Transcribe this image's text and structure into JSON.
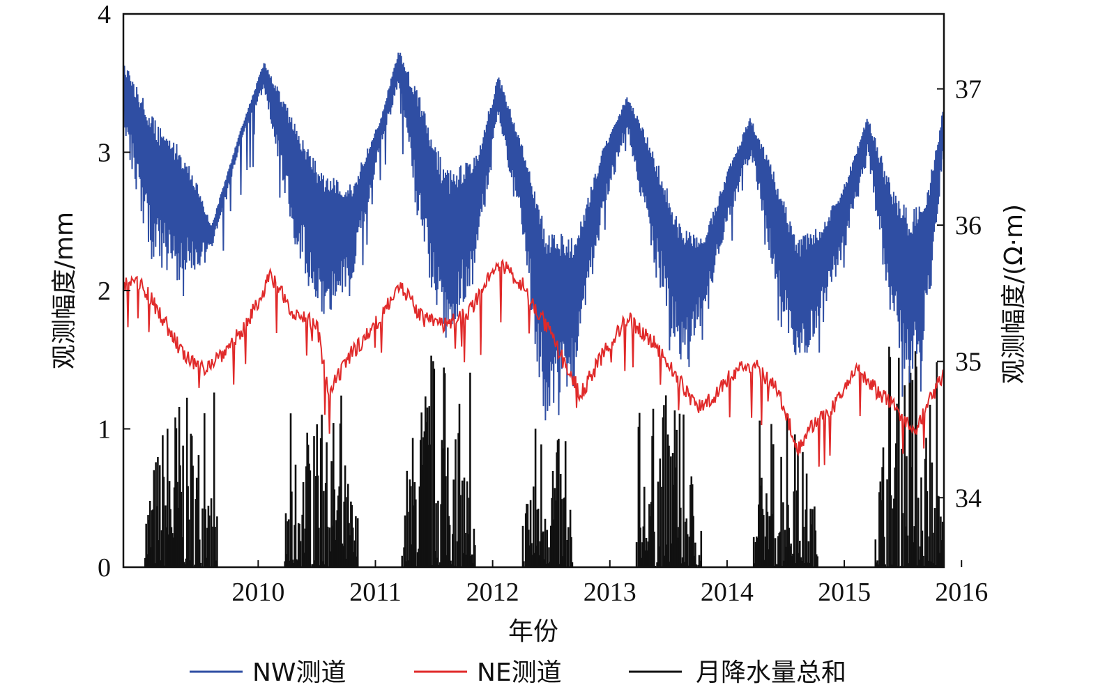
{
  "chart_data": {
    "type": "line",
    "title": "",
    "xlabel": "年份",
    "ylabel": "观测幅度/mm",
    "y2label": "观测幅度/(Ω·m)",
    "x_ticks": [
      "2010",
      "2011",
      "2012",
      "2013",
      "2014",
      "2015",
      "2016"
    ],
    "xlim": [
      2009.35,
      2016.35
    ],
    "ylim": [
      0,
      4
    ],
    "y_ticks": [
      "0",
      "1",
      "2",
      "3",
      "4"
    ],
    "y2lim": [
      33.49,
      37.55
    ],
    "y2_ticks": [
      "34",
      "35",
      "36",
      "37"
    ],
    "legend_position": "bottom",
    "series": [
      {
        "name": "NW测道",
        "axis": "right",
        "color": "#2f4ea3",
        "upper": [
          [
            2009.35,
            37.2
          ],
          [
            2009.6,
            36.8
          ],
          [
            2009.9,
            36.5
          ],
          [
            2010.1,
            36.0
          ],
          [
            2010.35,
            36.7
          ],
          [
            2010.55,
            37.2
          ],
          [
            2010.8,
            36.8
          ],
          [
            2011.05,
            36.4
          ],
          [
            2011.3,
            36.3
          ],
          [
            2011.55,
            36.8
          ],
          [
            2011.7,
            37.3
          ],
          [
            2011.9,
            36.9
          ],
          [
            2012.1,
            36.4
          ],
          [
            2012.35,
            36.5
          ],
          [
            2012.55,
            37.1
          ],
          [
            2012.75,
            36.6
          ],
          [
            2012.95,
            36.0
          ],
          [
            2013.2,
            35.9
          ],
          [
            2013.45,
            36.6
          ],
          [
            2013.65,
            36.95
          ],
          [
            2013.85,
            36.6
          ],
          [
            2014.1,
            36.0
          ],
          [
            2014.3,
            35.9
          ],
          [
            2014.5,
            36.4
          ],
          [
            2014.7,
            36.8
          ],
          [
            2014.9,
            36.4
          ],
          [
            2015.1,
            35.9
          ],
          [
            2015.3,
            36.0
          ],
          [
            2015.5,
            36.3
          ],
          [
            2015.7,
            36.8
          ],
          [
            2015.9,
            36.3
          ],
          [
            2016.05,
            36.1
          ],
          [
            2016.2,
            36.2
          ],
          [
            2016.35,
            36.9
          ]
        ],
        "lower": [
          [
            2009.35,
            36.7
          ],
          [
            2009.6,
            35.7
          ],
          [
            2009.9,
            35.6
          ],
          [
            2010.1,
            35.8
          ],
          [
            2010.35,
            36.6
          ],
          [
            2010.55,
            37.0
          ],
          [
            2010.8,
            35.9
          ],
          [
            2011.05,
            35.2
          ],
          [
            2011.3,
            35.6
          ],
          [
            2011.55,
            36.6
          ],
          [
            2011.7,
            37.0
          ],
          [
            2011.9,
            35.8
          ],
          [
            2012.1,
            35.1
          ],
          [
            2012.35,
            35.6
          ],
          [
            2012.55,
            36.8
          ],
          [
            2012.75,
            35.9
          ],
          [
            2012.95,
            34.5
          ],
          [
            2013.2,
            34.9
          ],
          [
            2013.45,
            36.1
          ],
          [
            2013.65,
            36.7
          ],
          [
            2013.85,
            35.8
          ],
          [
            2014.1,
            35.0
          ],
          [
            2014.3,
            35.3
          ],
          [
            2014.5,
            36.0
          ],
          [
            2014.7,
            36.5
          ],
          [
            2014.9,
            35.6
          ],
          [
            2015.1,
            34.9
          ],
          [
            2015.3,
            35.3
          ],
          [
            2015.5,
            35.8
          ],
          [
            2015.7,
            36.5
          ],
          [
            2015.9,
            35.3
          ],
          [
            2016.05,
            34.8
          ],
          [
            2016.2,
            35.2
          ],
          [
            2016.35,
            36.5
          ]
        ]
      },
      {
        "name": "NE测道",
        "axis": "left",
        "color": "#e02a2a",
        "values": [
          [
            2009.35,
            2.05
          ],
          [
            2009.5,
            2.05
          ],
          [
            2009.65,
            1.85
          ],
          [
            2009.85,
            1.55
          ],
          [
            2010.0,
            1.42
          ],
          [
            2010.2,
            1.55
          ],
          [
            2010.4,
            1.75
          ],
          [
            2010.6,
            2.1
          ],
          [
            2010.8,
            1.85
          ],
          [
            2011.0,
            1.75
          ],
          [
            2011.1,
            1.25
          ],
          [
            2011.3,
            1.55
          ],
          [
            2011.5,
            1.75
          ],
          [
            2011.7,
            2.05
          ],
          [
            2011.9,
            1.8
          ],
          [
            2012.1,
            1.75
          ],
          [
            2012.3,
            1.85
          ],
          [
            2012.55,
            2.2
          ],
          [
            2012.75,
            2.05
          ],
          [
            2012.95,
            1.75
          ],
          [
            2013.1,
            1.5
          ],
          [
            2013.25,
            1.25
          ],
          [
            2013.45,
            1.55
          ],
          [
            2013.65,
            1.8
          ],
          [
            2013.85,
            1.65
          ],
          [
            2014.05,
            1.4
          ],
          [
            2014.25,
            1.15
          ],
          [
            2014.4,
            1.25
          ],
          [
            2014.6,
            1.45
          ],
          [
            2014.75,
            1.45
          ],
          [
            2014.95,
            1.25
          ],
          [
            2015.1,
            0.85
          ],
          [
            2015.25,
            1.05
          ],
          [
            2015.45,
            1.2
          ],
          [
            2015.6,
            1.45
          ],
          [
            2015.8,
            1.25
          ],
          [
            2015.95,
            1.15
          ],
          [
            2016.1,
            0.95
          ],
          [
            2016.2,
            1.15
          ],
          [
            2016.35,
            1.4
          ]
        ]
      },
      {
        "name": "月降水量总和",
        "axis": "left",
        "color": "#111111",
        "seasons": [
          {
            "start": 2009.52,
            "end": 2010.15,
            "peak": 1.28
          },
          {
            "start": 2010.72,
            "end": 2011.35,
            "peak": 1.25
          },
          {
            "start": 2011.72,
            "end": 2012.35,
            "peak": 1.55
          },
          {
            "start": 2012.75,
            "end": 2013.18,
            "peak": 1.15
          },
          {
            "start": 2013.72,
            "end": 2014.28,
            "peak": 1.28
          },
          {
            "start": 2014.72,
            "end": 2015.28,
            "peak": 1.15
          },
          {
            "start": 2015.75,
            "end": 2016.34,
            "peak": 1.65
          }
        ]
      }
    ]
  }
}
